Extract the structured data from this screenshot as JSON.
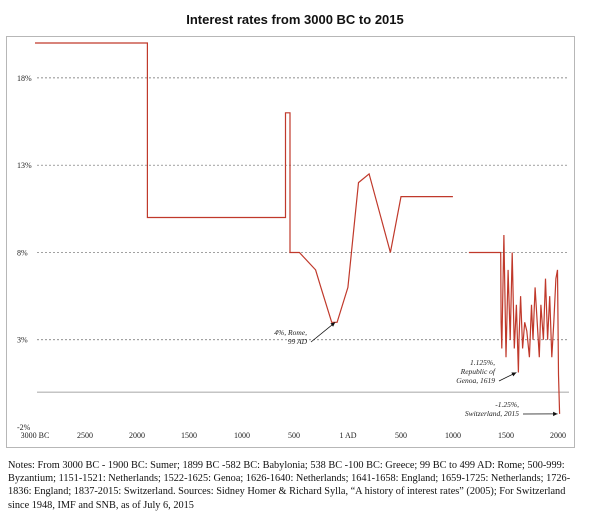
{
  "title": "Interest rates from 3000 BC to 2015",
  "notes": "Notes: From 3000 BC - 1900 BC: Sumer; 1899 BC -582 BC: Babylonia; 538 BC -100 BC: Greece; 99 BC to 499 AD: Rome; 500-999: Byzantium; 1151-1521: Netherlands; 1522-1625: Genoa; 1626-1640: Netherlands; 1641-1658: England; 1659-1725: Netherlands; 1726-1836: England; 1837-2015: Switzerland. Sources: Sidney Homer & Richard Sylla, “A history of interest rates” (2005); For Switzerland since 1948, IMF and SNB, as of July 6, 2015",
  "chart_data": {
    "type": "line",
    "title": "Interest rates from 3000 BC to 2015",
    "xlabel": "",
    "ylabel": "",
    "series_color": "#c0392b",
    "grid": "horizontal dashed",
    "ylim": [
      -2,
      20
    ],
    "yticks": [
      "18%",
      "13%",
      "8%",
      "3%",
      "-2%"
    ],
    "ytick_values": [
      18,
      13,
      8,
      3,
      -2
    ],
    "xticks": [
      "3000 BC",
      "2500",
      "2000",
      "1500",
      "1000",
      "500",
      "1 AD",
      "500",
      "1000",
      "1500",
      "2000"
    ],
    "xtick_values": [
      -3000,
      -2500,
      -2000,
      -1500,
      -1000,
      -500,
      1,
      500,
      1000,
      1500,
      2000
    ],
    "segments": [
      {
        "x": [
          -3000,
          -1900,
          -1900,
          -582,
          -582,
          -538,
          -538,
          -450,
          -450,
          -450,
          -300,
          -300,
          -250,
          -250,
          -150,
          -150,
          -100,
          -100,
          0,
          0,
          100,
          100,
          200,
          200,
          400,
          400,
          500,
          500,
          999
        ]
      },
      {
        "x": [
          1150,
          1450,
          1454,
          1460,
          1480,
          1500,
          1520,
          1540,
          1560,
          1580,
          1600,
          1619,
          1625,
          1640,
          1660,
          1680,
          1700,
          1725,
          1745,
          1760,
          1780,
          1800,
          1820,
          1836,
          1860,
          1880,
          1900,
          1920,
          1940,
          1960,
          1980,
          1995,
          2005,
          2015
        ]
      }
    ],
    "segment_values": [
      [
        20,
        20,
        10,
        10,
        16,
        16,
        8,
        8,
        8,
        8,
        7,
        7,
        6,
        6,
        4,
        4,
        4,
        4,
        6,
        6,
        12,
        12,
        12.5,
        12.5,
        8,
        8,
        11.2,
        11.2,
        11.2
      ],
      [
        8,
        8,
        4,
        2.5,
        9,
        2,
        7,
        3,
        8,
        2.5,
        5,
        1.125,
        3,
        5.5,
        2.5,
        4,
        3.5,
        2,
        5,
        3,
        6,
        4,
        2,
        5,
        3,
        6.5,
        3,
        5.5,
        2,
        4,
        6.5,
        7,
        1,
        -1.25
      ]
    ],
    "annotations": [
      {
        "text_lines": [
          "4%, Rome,",
          "99 AD"
        ],
        "x": -99,
        "y": 4
      },
      {
        "text_lines": [
          "1.125%,",
          "Republic of",
          "Genoa, 1619"
        ],
        "x": 1619,
        "y": 1.125
      },
      {
        "text_lines": [
          "-1.25%,",
          "Switzerland, 2015"
        ],
        "x": 2015,
        "y": -1.25
      }
    ]
  }
}
